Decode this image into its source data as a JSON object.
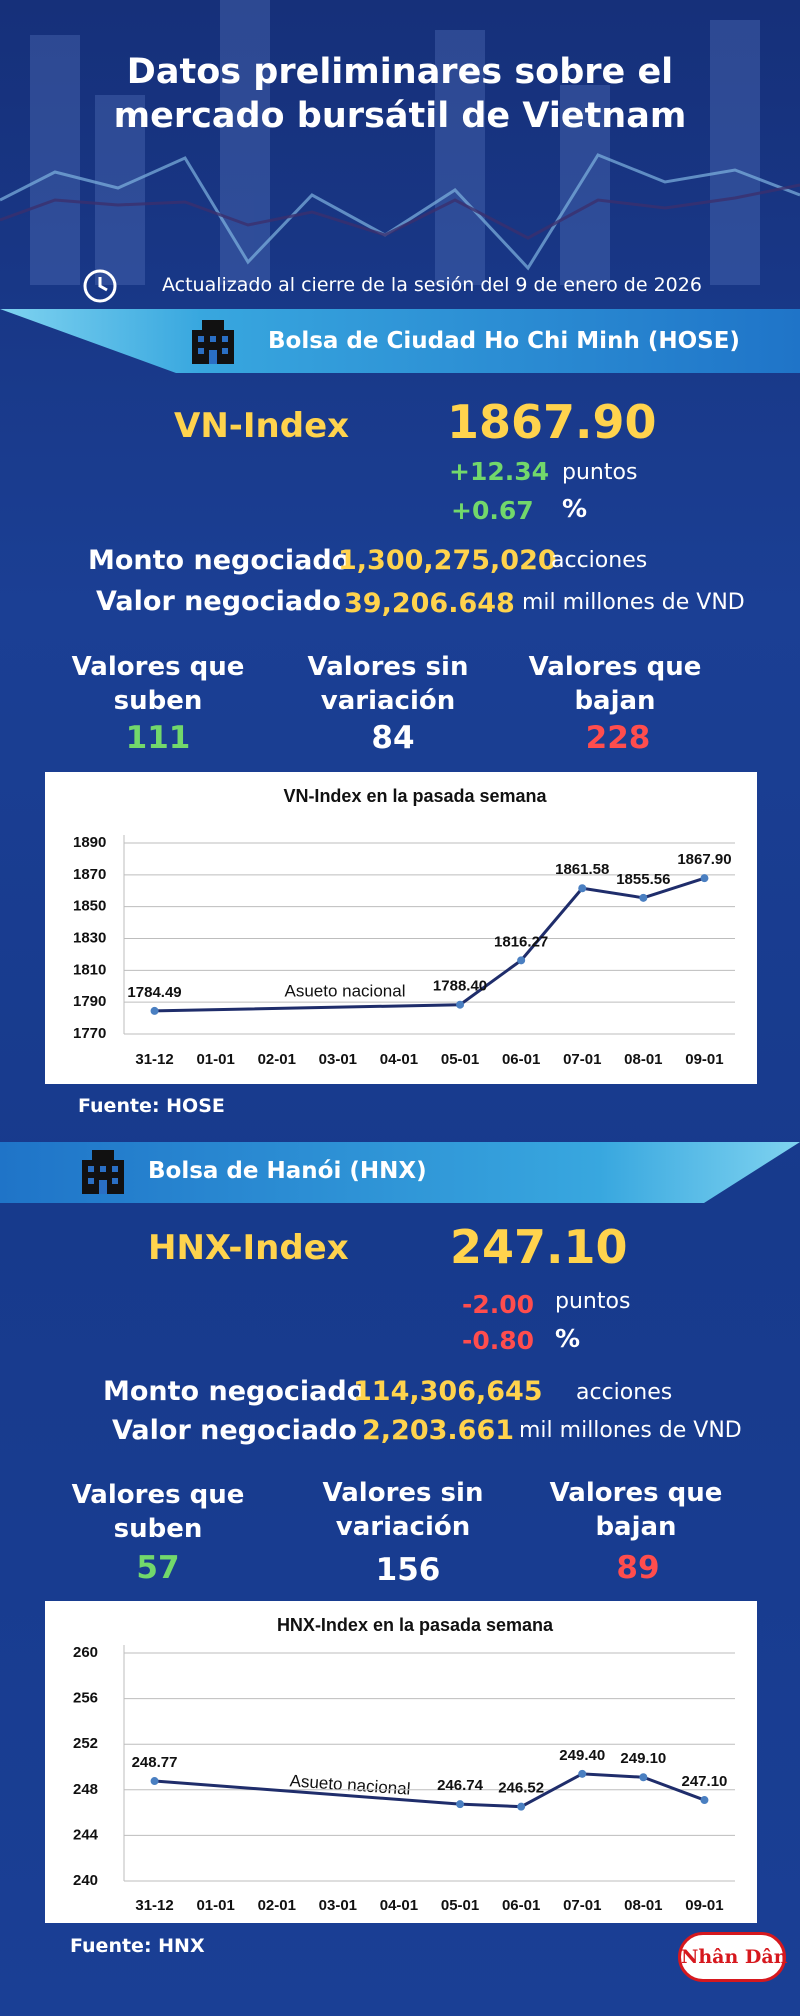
{
  "header": {
    "title": "Datos preliminares sobre el mercado bursátil de Vietnam",
    "updated": "Actualizado al cierre de la sesión del 9 de enero de 2026"
  },
  "hose": {
    "exchange": "Bolsa de Ciudad Ho Chi Minh (HOSE)",
    "index_name": "VN-Index",
    "index_value": "1867.90",
    "change": "+12.34",
    "change_unit": "puntos",
    "change_pct": "+0.67",
    "pct_unit": "%",
    "volume_label": "Monto negociado",
    "volume": "1,300,275,020",
    "volume_unit": "acciones",
    "value_label": "Valor negociado",
    "value": "39,206.648",
    "value_unit": "mil millones de VND",
    "up_label": "Valores que suben",
    "up": 111,
    "flat_label": "Valores sin variación",
    "flat": 84,
    "down_label": "Valores que bajan",
    "down": 228,
    "source": "Fuente: HOSE"
  },
  "hnx": {
    "exchange": "Bolsa de Hanói (HNX)",
    "index_name": "HNX-Index",
    "index_value": "247.10",
    "change": "-2.00",
    "change_unit": "puntos",
    "change_pct": "-0.80",
    "pct_unit": "%",
    "volume_label": "Monto negociado",
    "volume": "114,306,645",
    "volume_unit": "acciones",
    "value_label": "Valor negociado",
    "value": "2,203.661",
    "value_unit": "mil millones de VND",
    "up_label": "Valores que suben",
    "up": 57,
    "flat_label": "Valores sin variación",
    "flat": 156,
    "down_label": "Valores que bajan",
    "down": 89,
    "source": "Fuente:  HNX"
  },
  "footer": {
    "logo": "Nhân Dân"
  },
  "chart_data": [
    {
      "type": "line",
      "title": "VN-Index en la pasada semana",
      "annotation": "Asueto nacional",
      "categories": [
        "31-12",
        "01-01",
        "02-01",
        "03-01",
        "04-01",
        "05-01",
        "06-01",
        "07-01",
        "08-01",
        "09-01"
      ],
      "series": [
        {
          "color": "#1f2d6b",
          "marker_color": "#4a7fc1",
          "x": [
            "31-12",
            "05-01",
            "06-01",
            "07-01",
            "08-01",
            "09-01"
          ],
          "values": [
            1784.49,
            1788.4,
            1816.27,
            1861.58,
            1855.56,
            1867.9
          ],
          "value_labels": [
            "1784.49",
            "1788.40",
            "1816.27",
            "1861.58",
            "1855.56",
            "1867.90"
          ]
        }
      ],
      "ylim": [
        1770,
        1890
      ],
      "yticks": [
        1770,
        1790,
        1810,
        1830,
        1850,
        1870,
        1890
      ],
      "grid": true
    },
    {
      "type": "line",
      "title": "HNX-Index en la pasada semana",
      "annotation": "Asueto nacional",
      "categories": [
        "31-12",
        "01-01",
        "02-01",
        "03-01",
        "04-01",
        "05-01",
        "06-01",
        "07-01",
        "08-01",
        "09-01"
      ],
      "series": [
        {
          "color": "#1f2d6b",
          "marker_color": "#4a7fc1",
          "x": [
            "31-12",
            "05-01",
            "06-01",
            "07-01",
            "08-01",
            "09-01"
          ],
          "values": [
            248.77,
            246.74,
            246.52,
            249.4,
            249.1,
            247.1
          ],
          "value_labels": [
            "248.77",
            "246.74",
            "246.52",
            "249.40",
            "249.10",
            "247.10"
          ]
        }
      ],
      "ylim": [
        240,
        260
      ],
      "yticks": [
        240,
        244,
        248,
        252,
        256,
        260
      ],
      "grid": true
    }
  ]
}
